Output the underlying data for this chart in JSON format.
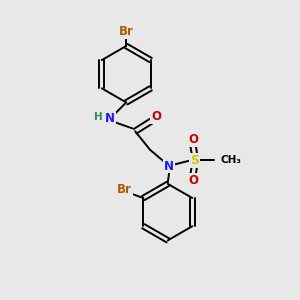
{
  "background_color": "#e8e8e8",
  "bond_color": "#000000",
  "atom_colors": {
    "Br": "#b35a00",
    "N": "#1a1aff",
    "O": "#cc0000",
    "S": "#cccc00",
    "H": "#2e8b57",
    "C": "#000000"
  },
  "figsize": [
    3.0,
    3.0
  ],
  "dpi": 100
}
